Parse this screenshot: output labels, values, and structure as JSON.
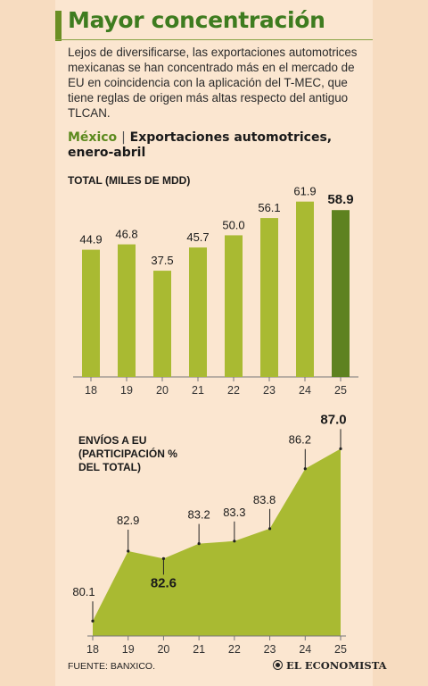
{
  "header": {
    "title": "Mayor concentración",
    "intro": "Lejos de diversificarse, las exportaciones automotrices mexicanas se han concentrado más en el mercado de EU en coincidencia con la aplicación del T-MEC, que tiene reglas de origen más altas respecto del antiguo TLCAN.",
    "country": "México",
    "separator": "|",
    "subtitle": "Exportaciones automotrices, enero-abril"
  },
  "chart_data": [
    {
      "type": "bar",
      "title": "TOTAL (MILES DE MDD)",
      "categories": [
        "18",
        "19",
        "20",
        "21",
        "22",
        "23",
        "24",
        "25"
      ],
      "values": [
        44.9,
        46.8,
        37.5,
        45.7,
        50.0,
        56.1,
        61.9,
        58.9
      ],
      "value_labels": [
        "44.9",
        "46.8",
        "37.5",
        "45.7",
        "50.0",
        "56.1",
        "61.9",
        "58.9"
      ],
      "highlight_index": 7,
      "ylim": [
        0,
        70
      ],
      "colors": {
        "bar": "#a9ba32",
        "highlight": "#5e8220"
      }
    },
    {
      "type": "area",
      "title": "ENVÍOS A EU (PARTICIPACIÓN % DEL TOTAL)",
      "title_lines": [
        "ENVÍOS A EU",
        "(PARTICIPACIÓN %",
        "DEL TOTAL)"
      ],
      "categories": [
        "18",
        "19",
        "20",
        "21",
        "22",
        "23",
        "24",
        "25"
      ],
      "values": [
        80.1,
        82.9,
        82.6,
        83.2,
        83.3,
        83.8,
        86.2,
        87.0
      ],
      "value_labels": [
        "80.1",
        "82.9",
        "82.6",
        "83.2",
        "83.3",
        "83.8",
        "86.2",
        "87.0"
      ],
      "bold_indices": [
        2,
        7
      ],
      "ylim": [
        79.5,
        87.3
      ],
      "colors": {
        "area": "#a9ba32"
      }
    }
  ],
  "footer": {
    "source": "FUENTE: BANXICO.",
    "logo": "EL ECONOMISTA"
  }
}
